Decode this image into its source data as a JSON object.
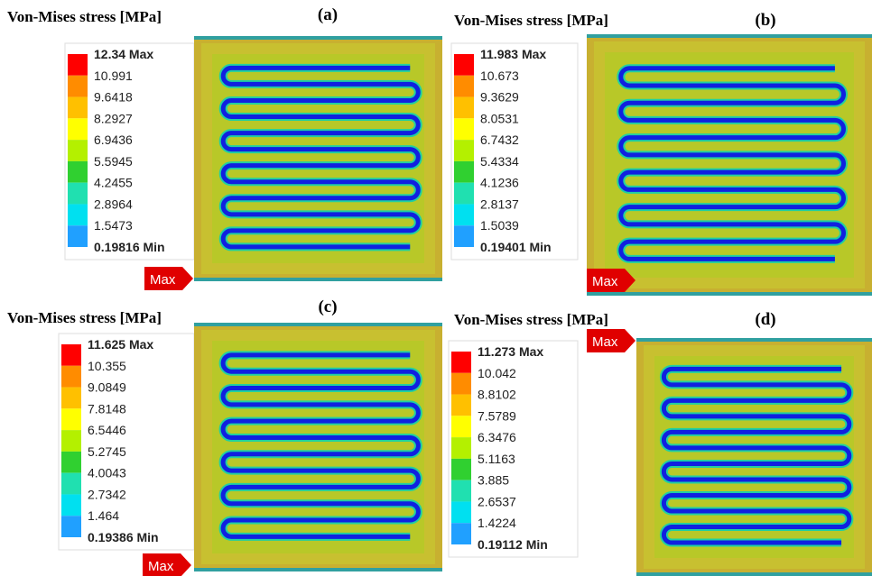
{
  "panels": [
    {
      "heading": "Von-Mises stress [MPa]",
      "label": "(a)",
      "max_tag": "Max",
      "levels": [
        "12.34 Max",
        "10.991",
        "9.6418",
        "8.2927",
        "6.9436",
        "5.5945",
        "4.2455",
        "2.8964",
        "1.5473",
        "0.19816 Min"
      ]
    },
    {
      "heading": "Von-Mises stress [MPa]",
      "label": "(b)",
      "max_tag": "Max",
      "levels": [
        "11.983 Max",
        "10.673",
        "9.3629",
        "8.0531",
        "6.7432",
        "5.4334",
        "4.1236",
        "2.8137",
        "1.5039",
        "0.19401 Min"
      ]
    },
    {
      "heading": "Von-Mises stress [MPa]",
      "label": "(c)",
      "max_tag": "Max",
      "levels": [
        "11.625 Max",
        "10.355",
        "9.0849",
        "7.8148",
        "6.5446",
        "5.2745",
        "4.0043",
        "2.7342",
        "1.464",
        "0.19386 Min"
      ]
    },
    {
      "heading": "Von-Mises stress [MPa]",
      "label": "(d)",
      "max_tag": "Max",
      "levels": [
        "11.273 Max",
        "10.042",
        "8.8102",
        "7.5789",
        "6.3476",
        "5.1163",
        "3.885",
        "2.6537",
        "1.4224",
        "0.19112 Min"
      ]
    }
  ]
}
